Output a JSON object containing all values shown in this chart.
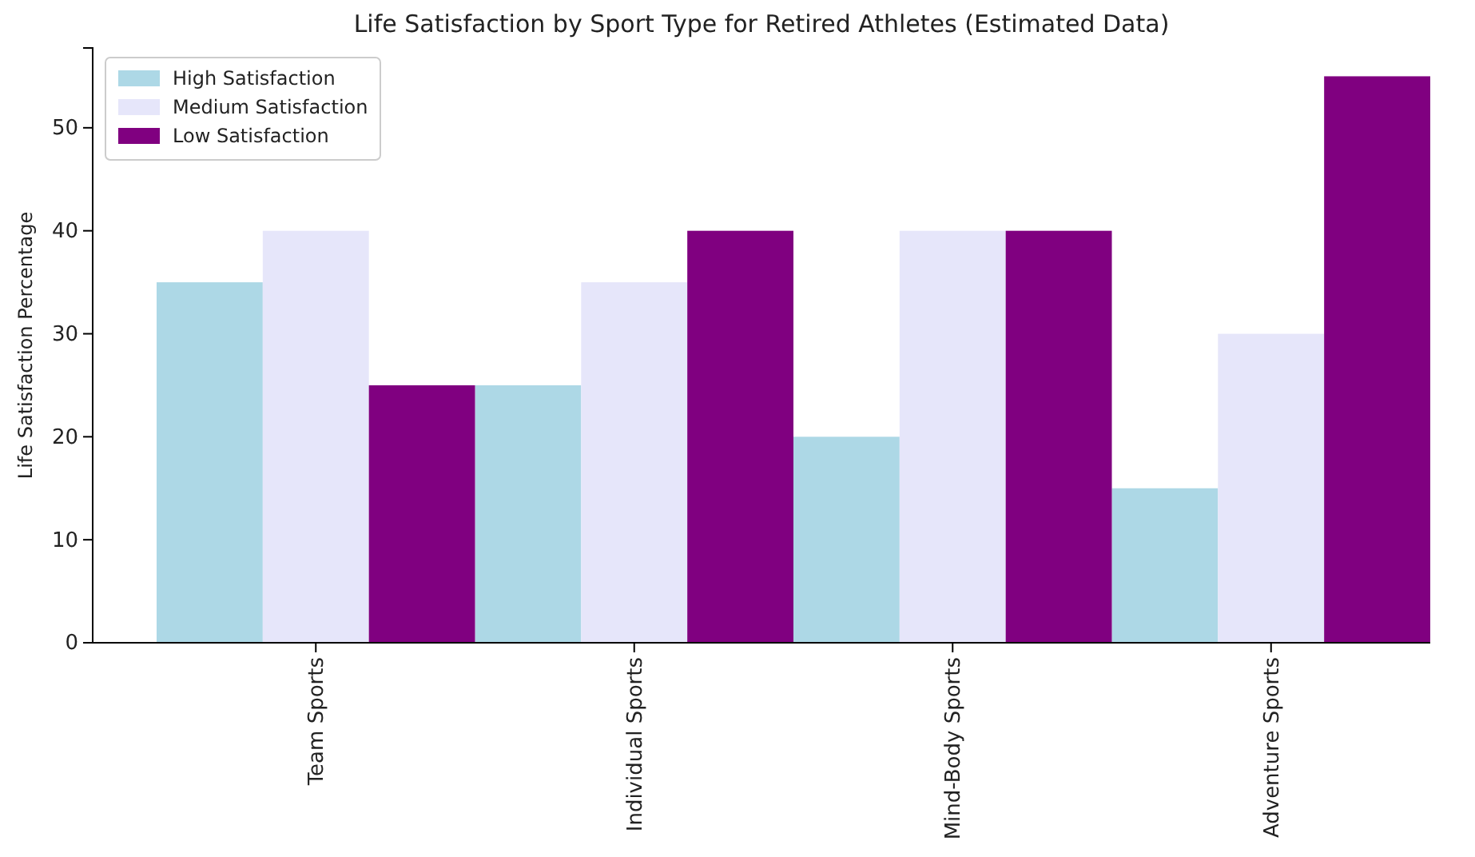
{
  "chart_data": {
    "type": "bar",
    "title": "Life Satisfaction by Sport Type for Retired Athletes (Estimated Data)",
    "ylabel": "Life Satisfaction Percentage",
    "categories": [
      "Team Sports",
      "Individual Sports",
      "Mind-Body Sports",
      "Adventure Sports"
    ],
    "series": [
      {
        "name": "High Satisfaction",
        "color": "#add8e6",
        "values": [
          35,
          25,
          20,
          15
        ]
      },
      {
        "name": "Medium Satisfaction",
        "color": "#e6e6fa",
        "values": [
          40,
          35,
          40,
          30
        ]
      },
      {
        "name": "Low Satisfaction",
        "color": "#800080",
        "values": [
          25,
          40,
          40,
          55
        ]
      }
    ],
    "ylim": [
      0,
      57.75
    ],
    "yticks": [
      0,
      10,
      20,
      30,
      40,
      50
    ],
    "grid": false,
    "legend": "top left"
  }
}
